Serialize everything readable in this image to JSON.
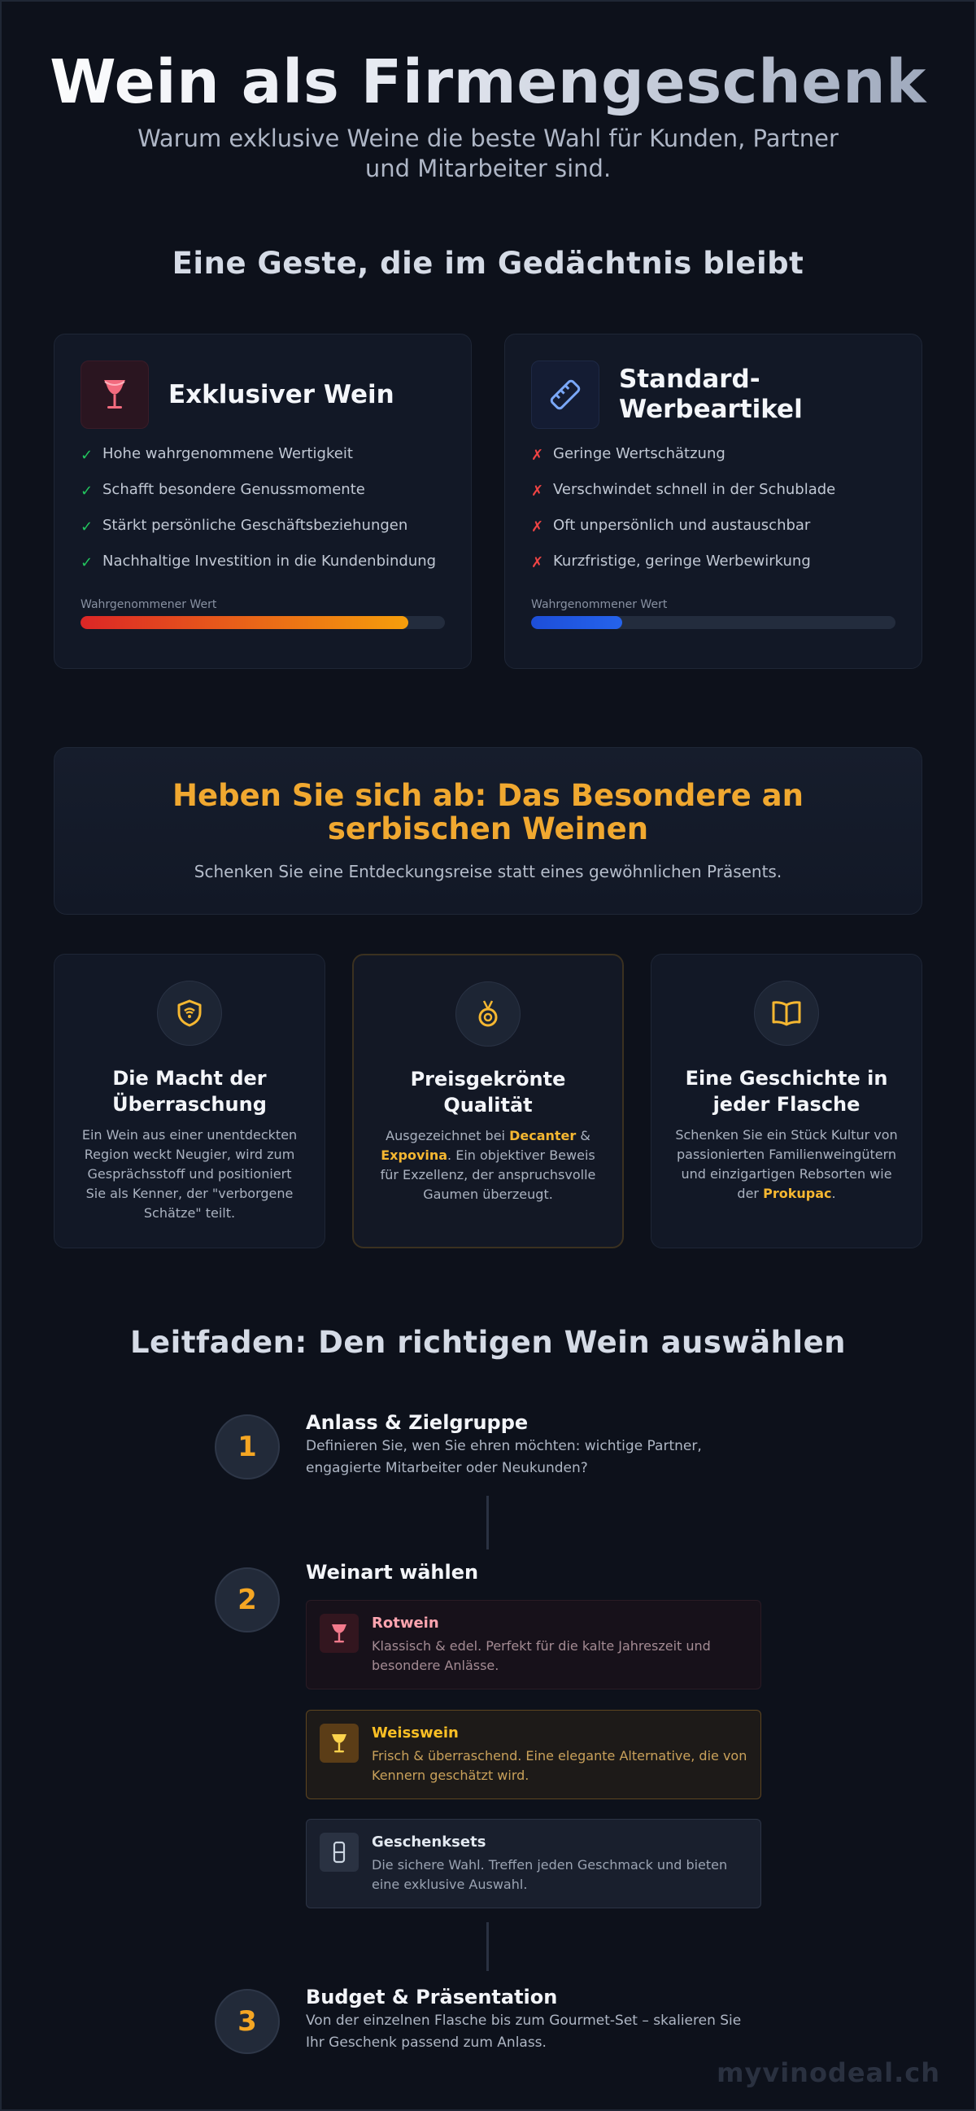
{
  "hero": {
    "title": "Wein als Firmengeschenk",
    "subtitle": "Warum exklusive Weine die beste Wahl für Kunden, Partner und Mitarbeiter sind."
  },
  "comparison": {
    "title": "Eine Geste, die im Gedächtnis bleibt",
    "exclusive": {
      "icon": "wine-glass-icon",
      "title": "Exklusiver Wein",
      "items": [
        "Hohe wahrgenommene Wertigkeit",
        "Schafft besondere Genussmomente",
        "Stärkt persönliche Geschäftsbeziehungen",
        "Nachhaltige Investition in die Kundenbindung"
      ],
      "meter_label": "Wahrgenommener Wert",
      "meter_value": 0.9,
      "accent": "#f59e0b"
    },
    "standard": {
      "icon": "tag-icon",
      "title": "Standard-Werbeartikel",
      "items": [
        "Geringe Wertschätzung",
        "Verschwindet schnell in der Schublade",
        "Oft unpersönlich und austauschbar",
        "Kurzfristige, geringe Werbewirkung"
      ],
      "meter_label": "Wahrgenommener Wert",
      "meter_value": 0.25,
      "accent": "#2563eb"
    }
  },
  "banner": {
    "title": "Heben Sie sich ab: Das Besondere an serbischen Weinen",
    "subtitle": "Schenken Sie eine Entdeckungsreise statt eines gewöhnlichen Präsents."
  },
  "features": [
    {
      "icon": "shield-icon",
      "title": "Die Macht der Überraschung",
      "text": "Ein Wein aus einer unentdeckten Region weckt Neugier, wird zum Gesprächsstoff und positioniert Sie als Kenner, der \"verborgene Schätze\" teilt."
    },
    {
      "icon": "medal-icon",
      "title": "Preisgekrönte Qualität",
      "text_parts": [
        "Ausgezeichnet bei ",
        "Decanter",
        " & ",
        "Expovina",
        ". Ein objektiver Beweis für Exzellenz, der anspruchsvolle Gaumen überzeugt."
      ]
    },
    {
      "icon": "book-icon",
      "title": "Eine Geschichte in jeder Flasche",
      "text_parts": [
        "Schenken Sie ein Stück Kultur von passionierten Familienweingütern und einzigartigen Rebsorten wie der ",
        "Prokupac",
        "."
      ]
    }
  ],
  "guide": {
    "title": "Leitfaden: Den richtigen Wein auswählen",
    "steps": [
      {
        "number": "1",
        "title": "Anlass & Zielgruppe",
        "text": "Definieren Sie, wen Sie ehren möchten: wichtige Partner, engagierte Mitarbeiter oder Neukunden?"
      },
      {
        "number": "2",
        "title": "Weinart wählen",
        "options": [
          {
            "icon": "red-wine-icon",
            "title": "Rotwein",
            "text": "Klassisch & edel. Perfekt für die kalte Jahreszeit und besondere Anlässe."
          },
          {
            "icon": "white-wine-icon",
            "title": "Weisswein",
            "text": "Frisch & überraschend. Eine elegante Alternative, die von Kennern geschätzt wird."
          },
          {
            "icon": "gift-set-icon",
            "title": "Geschenksets",
            "text": "Die sichere Wahl. Treffen jeden Geschmack und bieten eine exklusive Auswahl."
          }
        ]
      },
      {
        "number": "3",
        "title": "Budget & Präsentation",
        "text": "Von der einzelnen Flasche bis zum Gourmet-Set – skalieren Sie Ihr Geschenk passend zum Anlass."
      }
    ]
  },
  "watermark": "myvinodeal.ch"
}
